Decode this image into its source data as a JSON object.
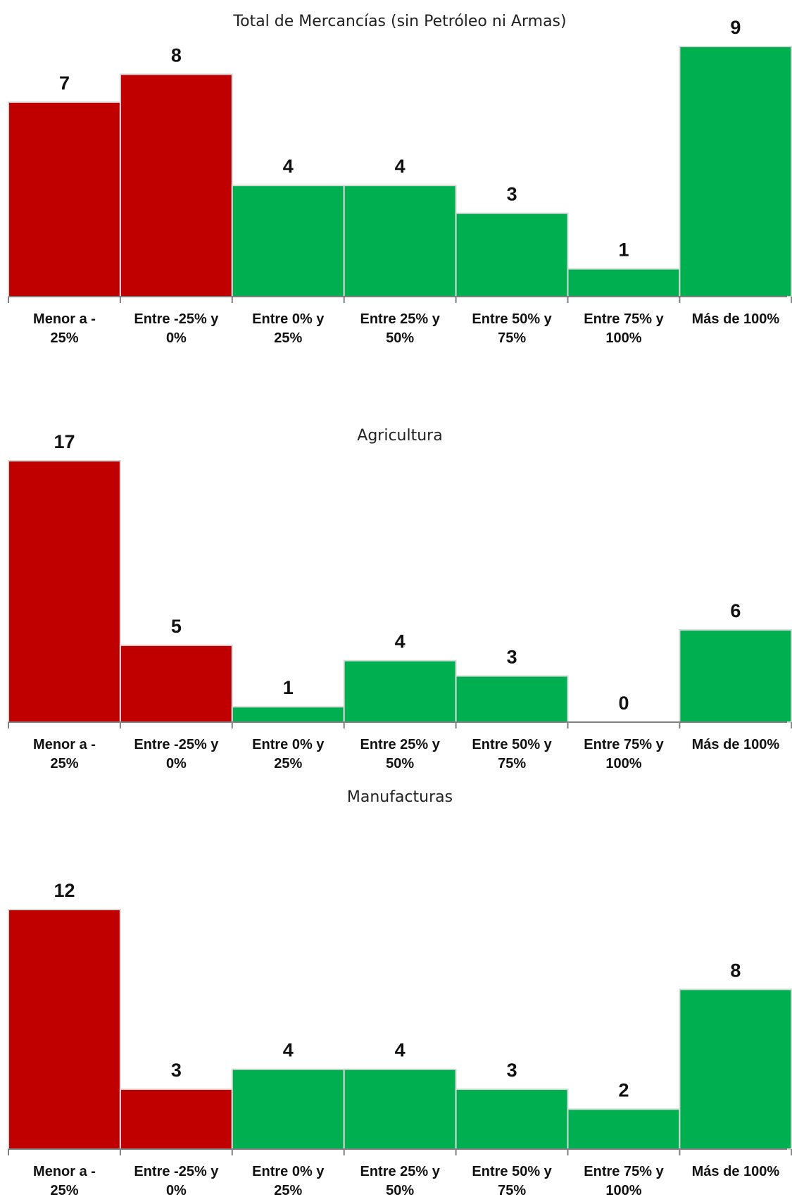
{
  "colors": {
    "negative": "#c00000",
    "positive": "#00b050",
    "baseline": "#808080"
  },
  "chart_data": [
    {
      "type": "bar",
      "title": "Total de Mercancías (sin Petróleo ni Armas)",
      "categories": [
        [
          "Menor a -",
          "25%"
        ],
        [
          "Entre -25% y",
          "0%"
        ],
        [
          "Entre 0% y",
          "25%"
        ],
        [
          "Entre 25% y",
          "50%"
        ],
        [
          "Entre 50% y",
          "75%"
        ],
        [
          "Entre 75% y",
          "100%"
        ],
        [
          "Más de 100%"
        ]
      ],
      "values": [
        7,
        8,
        4,
        4,
        3,
        1,
        9
      ],
      "bar_colors": [
        "negative",
        "negative",
        "positive",
        "positive",
        "positive",
        "positive",
        "positive"
      ],
      "ylim": [
        0,
        9
      ],
      "grid": false,
      "legend": false
    },
    {
      "type": "bar",
      "title": "Agricultura",
      "categories": [
        [
          "Menor a -",
          "25%"
        ],
        [
          "Entre -25% y",
          "0%"
        ],
        [
          "Entre 0% y",
          "25%"
        ],
        [
          "Entre 25% y",
          "50%"
        ],
        [
          "Entre 50% y",
          "75%"
        ],
        [
          "Entre 75% y",
          "100%"
        ],
        [
          "Más de 100%"
        ]
      ],
      "values": [
        17,
        5,
        1,
        4,
        3,
        0,
        6
      ],
      "bar_colors": [
        "negative",
        "negative",
        "positive",
        "positive",
        "positive",
        "positive",
        "positive"
      ],
      "ylim": [
        0,
        17
      ],
      "grid": false,
      "legend": false
    },
    {
      "type": "bar",
      "title": "Manufacturas",
      "categories": [
        [
          "Menor a -",
          "25%"
        ],
        [
          "Entre -25% y",
          "0%"
        ],
        [
          "Entre 0% y",
          "25%"
        ],
        [
          "Entre 25% y",
          "50%"
        ],
        [
          "Entre 50% y",
          "75%"
        ],
        [
          "Entre 75% y",
          "100%"
        ],
        [
          "Más de 100%"
        ]
      ],
      "values": [
        12,
        3,
        4,
        4,
        3,
        2,
        8
      ],
      "bar_colors": [
        "negative",
        "negative",
        "positive",
        "positive",
        "positive",
        "positive",
        "positive"
      ],
      "ylim": [
        0,
        12
      ],
      "grid": false,
      "legend": false
    }
  ]
}
